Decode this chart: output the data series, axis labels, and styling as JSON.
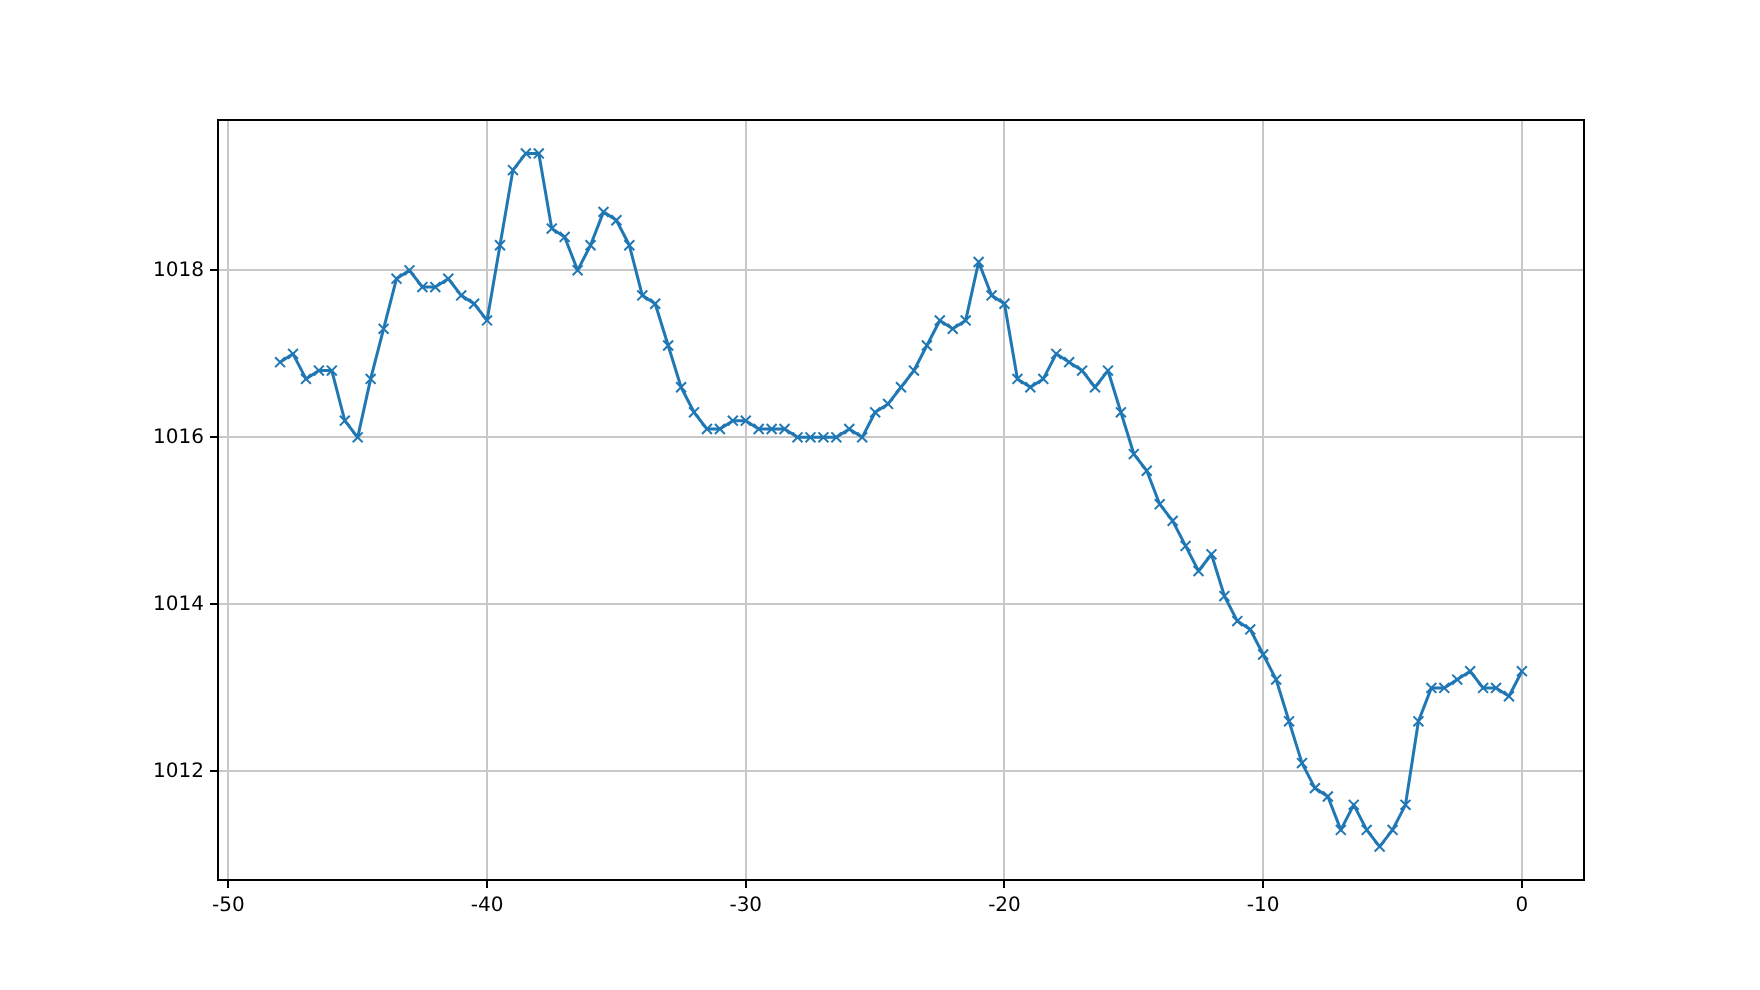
{
  "chart_data": {
    "type": "line",
    "marker": "cross",
    "grid": true,
    "x": [
      -48,
      -47.5,
      -47,
      -46.5,
      -46,
      -45.5,
      -45,
      -44.5,
      -44,
      -43.5,
      -43,
      -42.5,
      -42,
      -41.5,
      -41,
      -40.5,
      -40,
      -39.5,
      -39,
      -38.5,
      -38,
      -37.5,
      -37,
      -36.5,
      -36,
      -35.5,
      -35,
      -34.5,
      -34,
      -33.5,
      -33,
      -32.5,
      -32,
      -31.5,
      -31,
      -30.5,
      -30,
      -29.5,
      -29,
      -28.5,
      -28,
      -27.5,
      -27,
      -26.5,
      -26,
      -25.5,
      -25,
      -24.5,
      -24,
      -23.5,
      -23,
      -22.5,
      -22,
      -21.5,
      -21,
      -20.5,
      -20,
      -19.5,
      -19,
      -18.5,
      -18,
      -17.5,
      -17,
      -16.5,
      -16,
      -15.5,
      -15,
      -14.5,
      -14,
      -13.5,
      -13,
      -12.5,
      -12,
      -11.5,
      -11,
      -10.5,
      -10,
      -9.5,
      -9,
      -8.5,
      -8,
      -7.5,
      -7,
      -6.5,
      -6,
      -5.5,
      -5,
      -4.5,
      -4,
      -3.5,
      -3,
      -2.5,
      -2,
      -1.5,
      -1,
      -0.5,
      0
    ],
    "series": [
      {
        "color": "#1f77b4",
        "values": [
          1016.9,
          1017.0,
          1016.7,
          1016.8,
          1016.8,
          1016.2,
          1016.0,
          1016.7,
          1017.3,
          1017.9,
          1018.0,
          1017.8,
          1017.8,
          1017.9,
          1017.7,
          1017.6,
          1017.4,
          1018.3,
          1019.2,
          1019.4,
          1019.4,
          1018.5,
          1018.4,
          1018.0,
          1018.3,
          1018.7,
          1018.6,
          1018.3,
          1017.7,
          1017.6,
          1017.1,
          1016.6,
          1016.3,
          1016.1,
          1016.1,
          1016.2,
          1016.2,
          1016.1,
          1016.1,
          1016.1,
          1016.0,
          1016.0,
          1016.0,
          1016.0,
          1016.1,
          1016.0,
          1016.3,
          1016.4,
          1016.6,
          1016.8,
          1017.1,
          1017.4,
          1017.3,
          1017.4,
          1018.1,
          1017.7,
          1017.6,
          1016.7,
          1016.6,
          1016.7,
          1017.0,
          1016.9,
          1016.8,
          1016.6,
          1016.8,
          1016.3,
          1015.8,
          1015.6,
          1015.2,
          1015.0,
          1014.7,
          1014.4,
          1014.6,
          1014.1,
          1013.8,
          1013.7,
          1013.4,
          1013.1,
          1012.6,
          1012.1,
          1011.8,
          1011.7,
          1011.3,
          1011.6,
          1011.3,
          1011.1,
          1011.3,
          1011.6,
          1012.6,
          1013.0,
          1013.0,
          1013.1,
          1013.2,
          1013.0,
          1013.0,
          1012.9,
          1013.2
        ]
      }
    ],
    "xlim": [
      -50.4,
      2.4
    ],
    "xticks": [
      -50,
      -40,
      -30,
      -20,
      -10,
      0
    ],
    "ylim": [
      1010.7,
      1019.8
    ],
    "yticks": [
      1012,
      1014,
      1016,
      1018
    ]
  }
}
